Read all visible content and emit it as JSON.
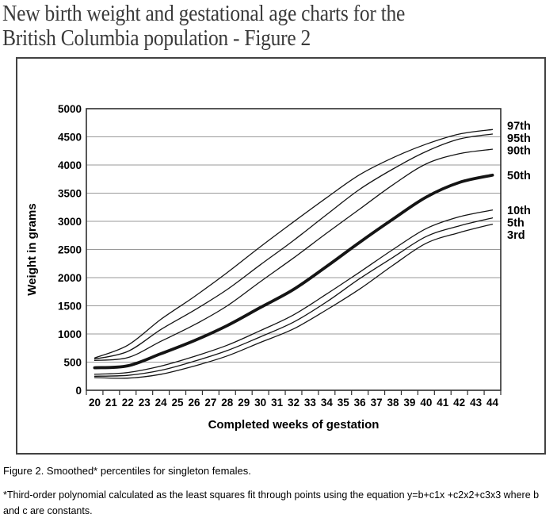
{
  "page": {
    "title_line1": "New birth weight and gestational age charts for the",
    "title_line2": "British Columbia population - Figure 2",
    "caption": "Figure 2. Smoothed* percentiles for singleton females.",
    "footnote": "*Third-order polynomial calculated as the least squares fit through points using the equation y=b+c1x +c2x2+c3x3 where b and c are constants."
  },
  "chart_data": {
    "type": "line",
    "title": "",
    "xlabel": "Completed weeks of gestation",
    "ylabel": "Weight in grams",
    "x_anchor_weeks": [
      20,
      22,
      24,
      26,
      28,
      30,
      32,
      34,
      36,
      38,
      40,
      42,
      44
    ],
    "x_tick_labels": [
      "20",
      "21",
      "22",
      "23",
      "24",
      "25",
      "26",
      "27",
      "28",
      "29",
      "30",
      "31",
      "32",
      "33",
      "34",
      "35",
      "36",
      "37",
      "38",
      "39",
      "40",
      "41",
      "42",
      "43",
      "44"
    ],
    "ylim": [
      0,
      5000
    ],
    "y_ticks": [
      0,
      500,
      1000,
      1500,
      2000,
      2500,
      3000,
      3500,
      4000,
      4500,
      5000
    ],
    "grid": "horizontal-gray-lines",
    "legend_position": "curve-labels-right-of-plot",
    "series": [
      {
        "name": "97th",
        "emphasis": false,
        "values": [
          575,
          800,
          1260,
          1660,
          2090,
          2550,
          2990,
          3420,
          3830,
          4130,
          4370,
          4550,
          4630
        ]
      },
      {
        "name": "95th",
        "emphasis": false,
        "values": [
          555,
          690,
          1080,
          1420,
          1790,
          2230,
          2660,
          3120,
          3570,
          3930,
          4240,
          4460,
          4550
        ]
      },
      {
        "name": "90th",
        "emphasis": false,
        "values": [
          530,
          580,
          870,
          1160,
          1500,
          1930,
          2350,
          2790,
          3220,
          3650,
          4020,
          4200,
          4280
        ]
      },
      {
        "name": "50th",
        "emphasis": true,
        "values": [
          400,
          435,
          650,
          880,
          1150,
          1470,
          1790,
          2200,
          2630,
          3040,
          3430,
          3690,
          3820
        ]
      },
      {
        "name": "10th",
        "emphasis": false,
        "values": [
          285,
          315,
          430,
          600,
          800,
          1060,
          1340,
          1710,
          2100,
          2500,
          2870,
          3080,
          3200
        ]
      },
      {
        "name": "5th",
        "emphasis": false,
        "values": [
          250,
          265,
          355,
          515,
          705,
          950,
          1210,
          1570,
          1985,
          2360,
          2730,
          2920,
          3060
        ]
      },
      {
        "name": "3rd",
        "emphasis": false,
        "values": [
          225,
          215,
          285,
          430,
          610,
          850,
          1090,
          1430,
          1800,
          2220,
          2610,
          2800,
          2950
        ]
      }
    ],
    "colors": {
      "curve": "#141414",
      "grid": "#9a9a9a",
      "axis": "#2f2f2f",
      "box_border": "#424242",
      "title_text": "#3a3a3a"
    }
  }
}
